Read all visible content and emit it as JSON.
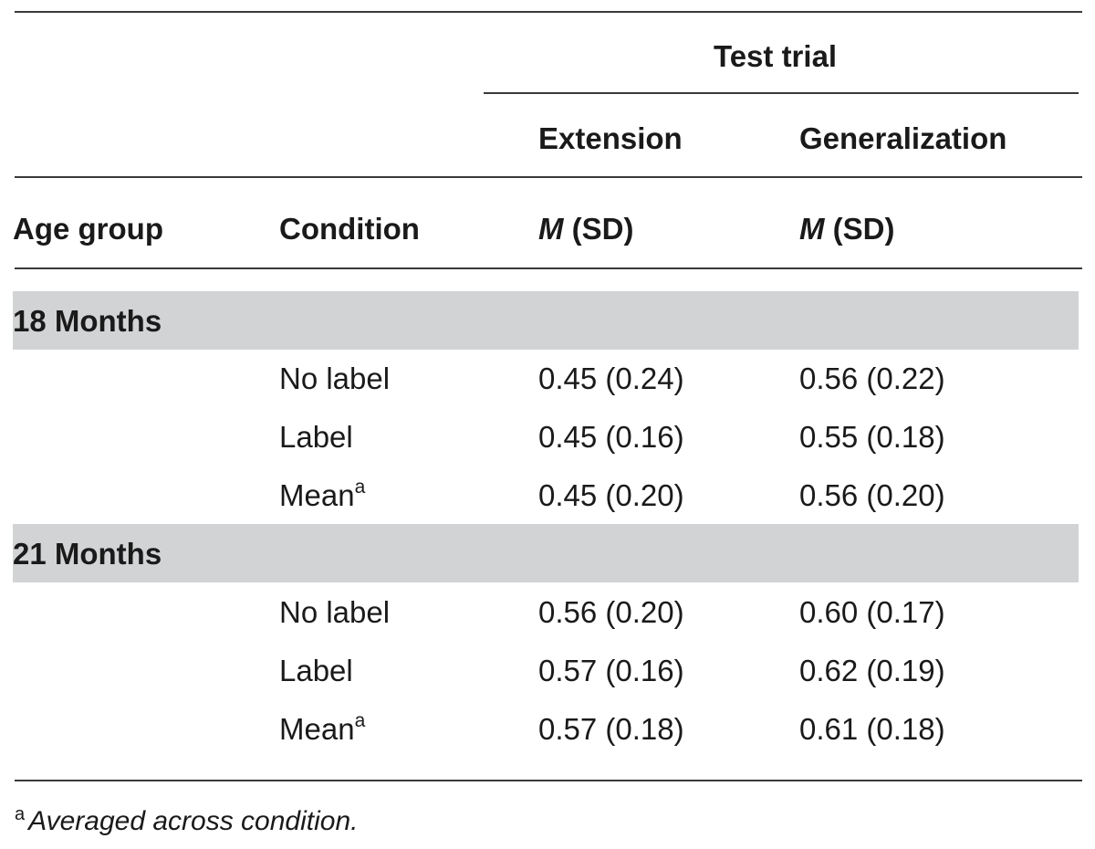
{
  "header": {
    "group_heading": "Test trial",
    "col_extension": "Extension",
    "col_generalization": "Generalization",
    "col_age_group": "Age group",
    "col_condition": "Condition",
    "stat_symbol": "M",
    "stat_suffix": "(SD)"
  },
  "groups": [
    {
      "label": "18 Months",
      "rows": [
        {
          "condition": "No label",
          "sup": "",
          "extension": "0.45 (0.24)",
          "generalization": "0.56 (0.22)"
        },
        {
          "condition": "Label",
          "sup": "",
          "extension": "0.45 (0.16)",
          "generalization": "0.55 (0.18)"
        },
        {
          "condition": "Mean",
          "sup": "a",
          "extension": "0.45 (0.20)",
          "generalization": "0.56 (0.20)"
        }
      ]
    },
    {
      "label": "21 Months",
      "rows": [
        {
          "condition": "No label",
          "sup": "",
          "extension": "0.56 (0.20)",
          "generalization": "0.60 (0.17)"
        },
        {
          "condition": "Label",
          "sup": "",
          "extension": "0.57 (0.16)",
          "generalization": "0.62 (0.19)"
        },
        {
          "condition": "Mean",
          "sup": "a",
          "extension": "0.57 (0.18)",
          "generalization": "0.61 (0.18)"
        }
      ]
    }
  ],
  "footnote": {
    "marker": "a",
    "text": "Averaged across condition."
  }
}
